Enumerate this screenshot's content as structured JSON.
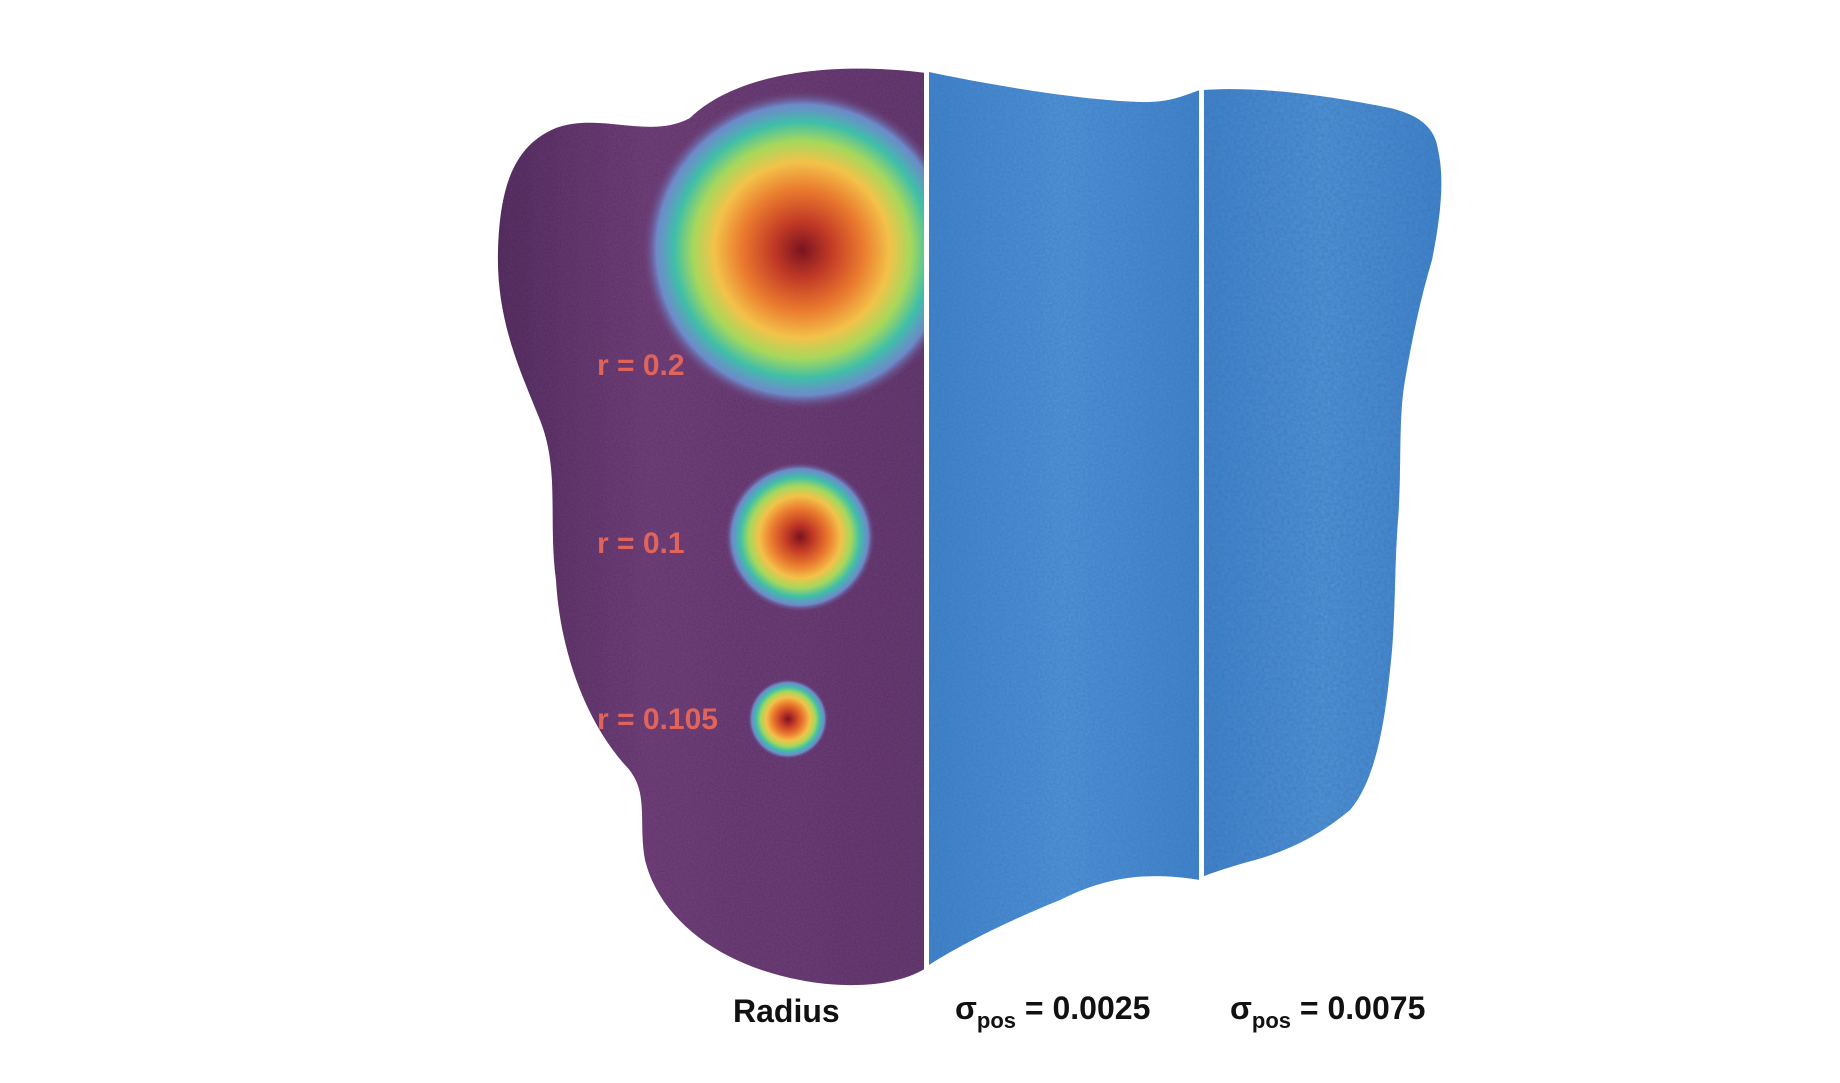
{
  "panels": {
    "radius": {
      "caption": "Radius",
      "labels": [
        "r = 0.2",
        "r = 0.1",
        "r = 0.105"
      ],
      "label_color": "#e0645a",
      "surface_color": "#6d3f78"
    },
    "sigma_low": {
      "symbol": "σ",
      "subscript": "pos",
      "value": "= 0.0025",
      "surface_color": "#4a8fd8"
    },
    "sigma_high": {
      "symbol": "σ",
      "subscript": "pos",
      "value": "= 0.0075",
      "surface_color": "#4a8fd8"
    }
  },
  "colormap": [
    "#8b1a1a",
    "#d2452b",
    "#f07d2f",
    "#f5c443",
    "#a8d95a",
    "#3fc0a8",
    "#4a9fe0",
    "#6d3f78"
  ]
}
